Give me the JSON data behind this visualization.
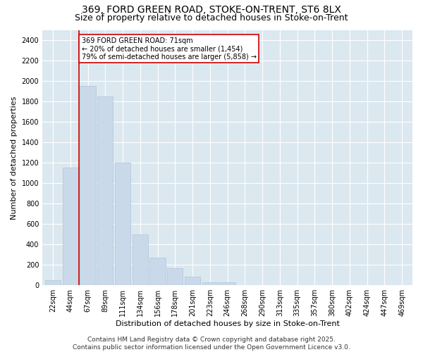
{
  "title1": "369, FORD GREEN ROAD, STOKE-ON-TRENT, ST6 8LX",
  "title2": "Size of property relative to detached houses in Stoke-on-Trent",
  "xlabel": "Distribution of detached houses by size in Stoke-on-Trent",
  "ylabel": "Number of detached properties",
  "categories": [
    "22sqm",
    "44sqm",
    "67sqm",
    "89sqm",
    "111sqm",
    "134sqm",
    "156sqm",
    "178sqm",
    "201sqm",
    "223sqm",
    "246sqm",
    "268sqm",
    "290sqm",
    "313sqm",
    "335sqm",
    "357sqm",
    "380sqm",
    "402sqm",
    "424sqm",
    "447sqm",
    "469sqm"
  ],
  "values": [
    50,
    1150,
    1950,
    1850,
    1200,
    500,
    270,
    170,
    85,
    30,
    30,
    0,
    0,
    0,
    0,
    0,
    0,
    0,
    0,
    0,
    0
  ],
  "bar_color": "#c9d9ea",
  "bar_edge_color": "#b0c4d8",
  "vline_color": "#cc0000",
  "vline_pos": 1.5,
  "annotation_text": "369 FORD GREEN ROAD: 71sqm\n← 20% of detached houses are smaller (1,454)\n79% of semi-detached houses are larger (5,858) →",
  "annotation_box_color": "#ffffff",
  "annotation_box_edge": "#cc0000",
  "ylim": [
    0,
    2500
  ],
  "yticks": [
    0,
    200,
    400,
    600,
    800,
    1000,
    1200,
    1400,
    1600,
    1800,
    2000,
    2200,
    2400
  ],
  "bg_color": "#dce8f0",
  "fig_bg_color": "#ffffff",
  "footnote": "Contains HM Land Registry data © Crown copyright and database right 2025.\nContains public sector information licensed under the Open Government Licence v3.0.",
  "title_fontsize": 10,
  "subtitle_fontsize": 9,
  "axis_label_fontsize": 8,
  "tick_fontsize": 7,
  "footnote_fontsize": 6.5,
  "annot_fontsize": 7
}
